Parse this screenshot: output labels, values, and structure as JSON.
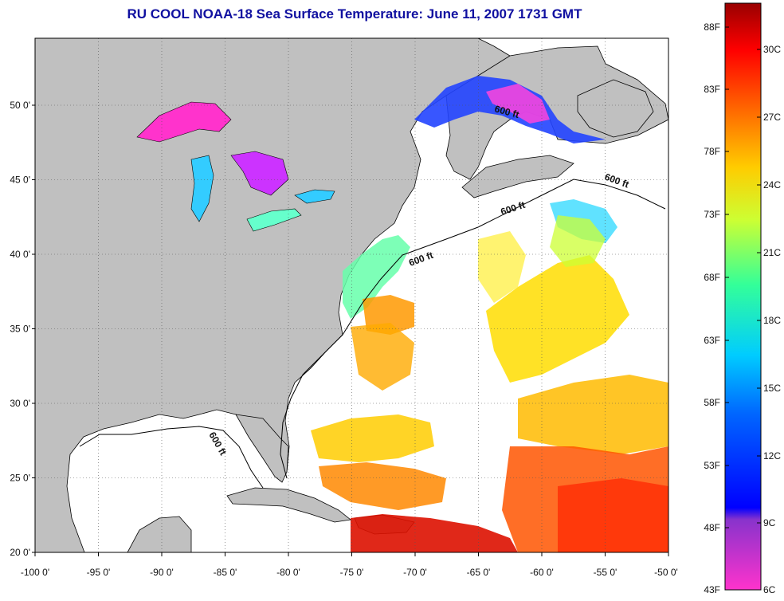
{
  "title": "RU COOL  NOAA-18  Sea Surface Temperature:  June 11, 2007 1731 GMT",
  "map": {
    "lon_labels": [
      "-100 0'",
      "-95 0'",
      "-90 0'",
      "-85 0'",
      "-80 0'",
      "-75 0'",
      "-70 0'",
      "-65 0'",
      "-60 0'",
      "-55 0'",
      "-50 0'"
    ],
    "lat_labels": [
      "20 0'",
      "25 0'",
      "30 0'",
      "35 0'",
      "40 0'",
      "45 0'",
      "50 0'"
    ],
    "isobath_label": "600 ft"
  },
  "colorbar": {
    "fahrenheit": [
      "88F",
      "83F",
      "78F",
      "73F",
      "68F",
      "63F",
      "58F",
      "53F",
      "48F",
      "43F"
    ],
    "celsius": [
      "30C",
      "27C",
      "24C",
      "21C",
      "18C",
      "15C",
      "12C",
      "9C",
      "6C"
    ]
  },
  "colors": {
    "title": "#1010a0",
    "land": "#c0c0c0",
    "ocean": "#ffffff"
  }
}
